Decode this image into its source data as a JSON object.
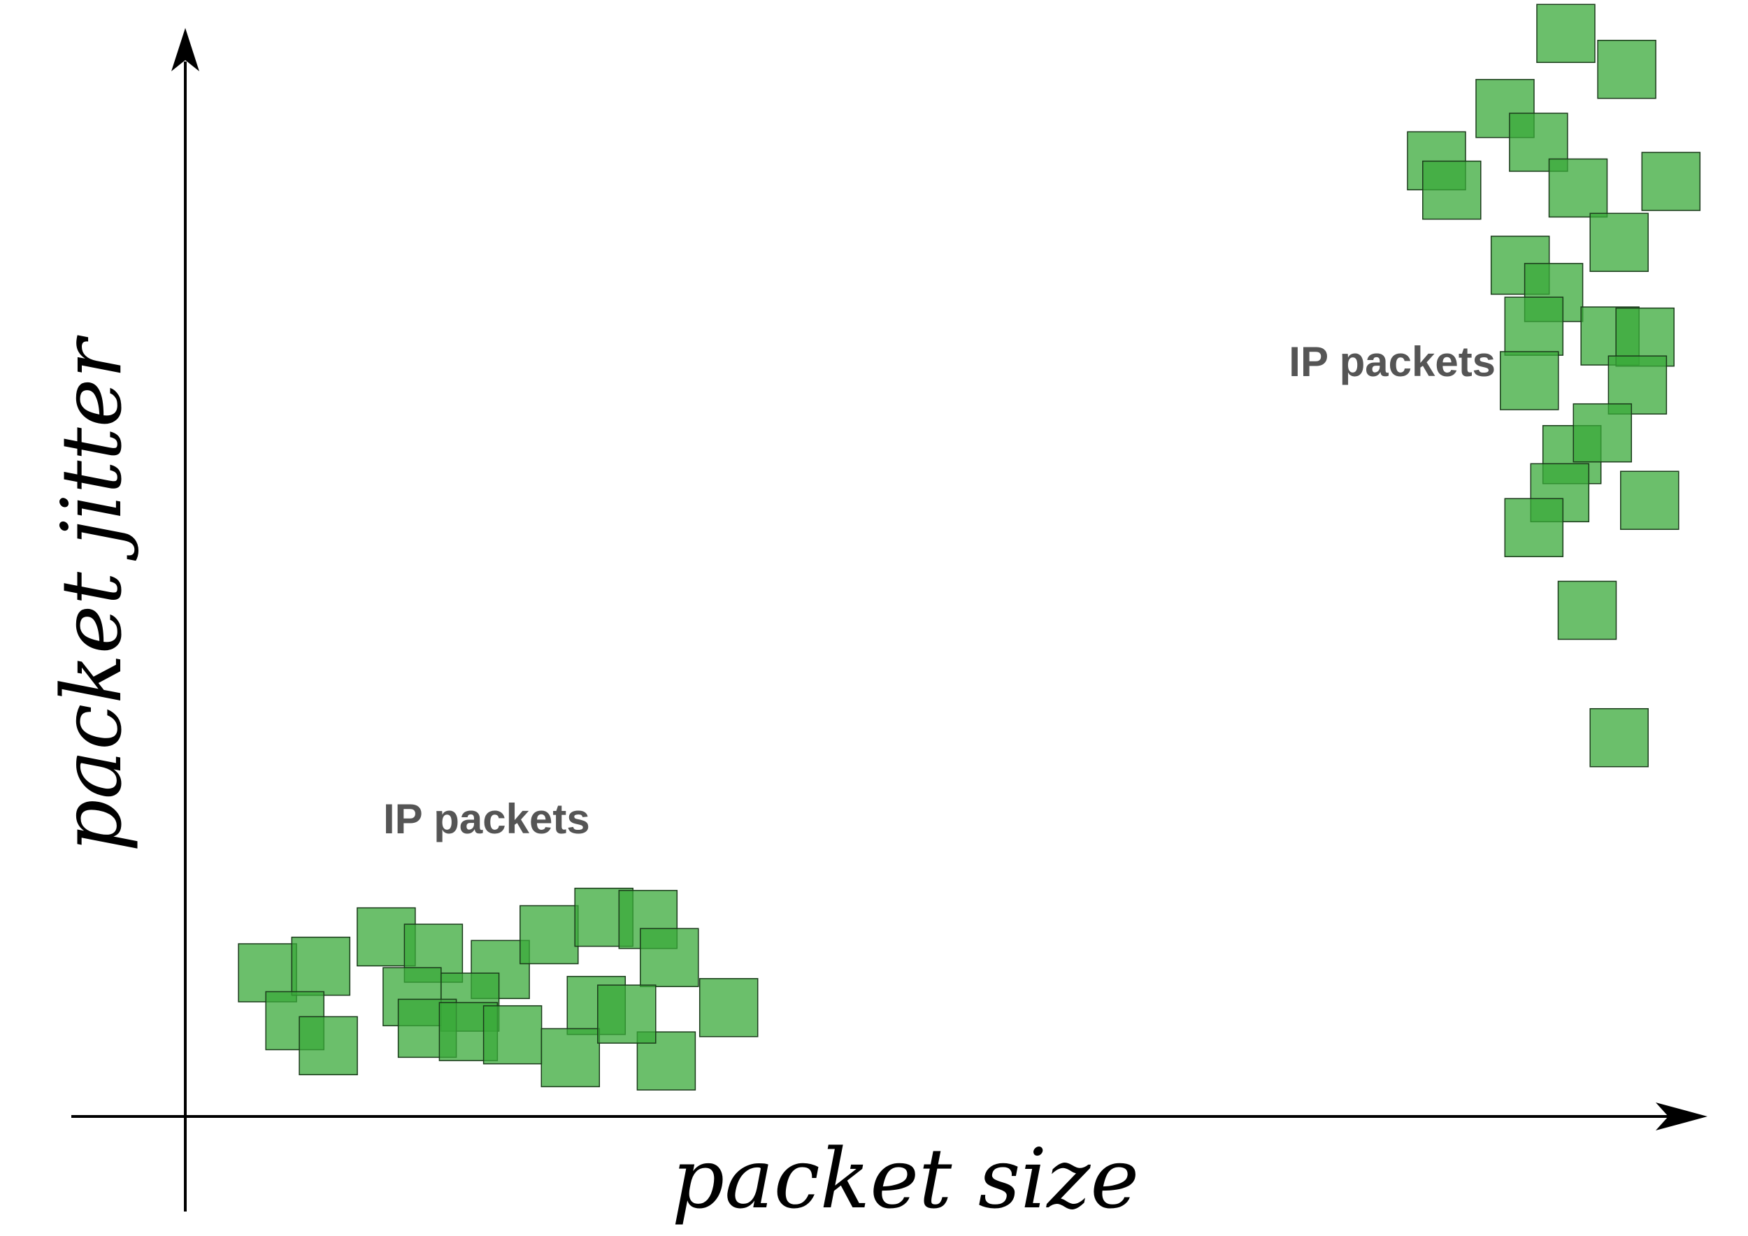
{
  "chart_data": {
    "type": "scatter",
    "title": "",
    "xlabel": "packet size",
    "ylabel": "packet jitter",
    "xlim": [
      0,
      100
    ],
    "ylim": [
      0,
      100
    ],
    "grid": false,
    "marker": "square",
    "colors": {
      "marker": "#39a939",
      "marker_edge": "#1a3a1a",
      "annotation": "#555555",
      "axis": "#000000"
    },
    "annotations": [
      {
        "text": "IP packets",
        "x": 13,
        "y": 26
      },
      {
        "text": "IP packets",
        "x": 72.5,
        "y": 68
      }
    ],
    "series": [
      {
        "points": [
          [
            5.4,
            13.2
          ],
          [
            8.9,
            13.8
          ],
          [
            13.2,
            16.5
          ],
          [
            16.3,
            15.0
          ],
          [
            20.7,
            13.5
          ],
          [
            23.9,
            16.7
          ],
          [
            27.5,
            18.3
          ],
          [
            30.4,
            18.1
          ],
          [
            31.8,
            14.6
          ],
          [
            27.0,
            10.2
          ],
          [
            18.7,
            10.5
          ],
          [
            14.9,
            11.0
          ],
          [
            7.2,
            8.8
          ],
          [
            9.4,
            6.5
          ],
          [
            15.9,
            8.1
          ],
          [
            18.6,
            7.8
          ],
          [
            21.5,
            7.5
          ],
          [
            25.3,
            5.4
          ],
          [
            31.6,
            5.1
          ],
          [
            29.0,
            9.4
          ],
          [
            35.7,
            10.0
          ]
        ]
      },
      {
        "points": [
          [
            90.7,
            99.5
          ],
          [
            94.7,
            96.2
          ],
          [
            86.7,
            92.6
          ],
          [
            88.9,
            89.5
          ],
          [
            82.2,
            87.8
          ],
          [
            83.2,
            85.1
          ],
          [
            91.5,
            85.3
          ],
          [
            97.6,
            85.9
          ],
          [
            94.2,
            80.3
          ],
          [
            87.7,
            78.2
          ],
          [
            89.9,
            75.7
          ],
          [
            88.6,
            72.6
          ],
          [
            93.6,
            71.7
          ],
          [
            95.9,
            71.6
          ],
          [
            88.3,
            67.6
          ],
          [
            95.4,
            67.2
          ],
          [
            91.1,
            60.8
          ],
          [
            93.1,
            62.8
          ],
          [
            90.3,
            57.3
          ],
          [
            96.2,
            56.6
          ],
          [
            88.6,
            54.1
          ],
          [
            92.1,
            46.5
          ],
          [
            94.2,
            34.8
          ]
        ]
      }
    ]
  }
}
